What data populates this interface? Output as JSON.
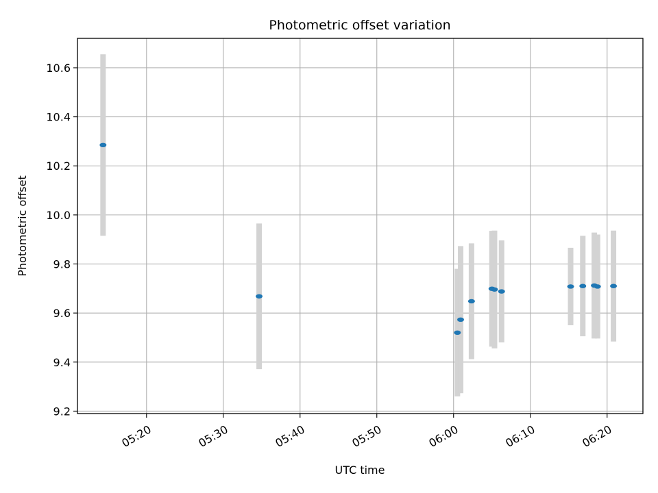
{
  "chart_data": {
    "type": "scatter",
    "title": "Photometric offset variation",
    "xlabel": "UTC time",
    "ylabel": "Photometric offset",
    "grid": true,
    "x_ticks": [
      "05:20",
      "05:30",
      "05:40",
      "05:50",
      "06:00",
      "06:10",
      "06:20"
    ],
    "y_ticks": [
      "9.2",
      "9.4",
      "9.6",
      "9.8",
      "10.0",
      "10.2",
      "10.4",
      "10.6"
    ],
    "xlim": [
      "05:11:00",
      "06:24:40"
    ],
    "ylim": [
      9.19,
      10.72
    ],
    "colors": {
      "points": "#1f77b4",
      "errorbars": "#d3d3d3",
      "grid": "#b0b0b0"
    },
    "points": [
      {
        "x": "05:14:20",
        "y": 10.285,
        "err": 0.37
      },
      {
        "x": "05:34:40",
        "y": 9.668,
        "err": 0.297
      },
      {
        "x": "06:00:30",
        "y": 9.52,
        "err": 0.26
      },
      {
        "x": "06:00:55",
        "y": 9.573,
        "err": 0.3
      },
      {
        "x": "06:02:20",
        "y": 9.648,
        "err": 0.236
      },
      {
        "x": "06:05:00",
        "y": 9.699,
        "err": 0.236
      },
      {
        "x": "06:05:20",
        "y": 9.696,
        "err": 0.24
      },
      {
        "x": "06:06:15",
        "y": 9.688,
        "err": 0.208
      },
      {
        "x": "06:15:15",
        "y": 9.708,
        "err": 0.158
      },
      {
        "x": "06:16:50",
        "y": 9.71,
        "err": 0.205
      },
      {
        "x": "06:18:20",
        "y": 9.712,
        "err": 0.216
      },
      {
        "x": "06:18:45",
        "y": 9.708,
        "err": 0.212
      },
      {
        "x": "06:20:50",
        "y": 9.71,
        "err": 0.226
      }
    ]
  }
}
